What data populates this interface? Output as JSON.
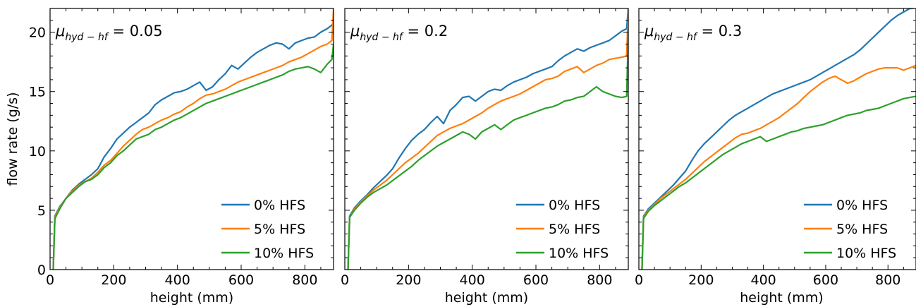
{
  "colors": {
    "0% HFS": "#1f77b4",
    "5% HFS": "#ff7f0e",
    "10% HFS": "#2ca02c"
  },
  "chart_data": [
    {
      "type": "line",
      "annotation": {
        "symbol": "μ",
        "subscript": "hyd − hf",
        "value": " = 0.05"
      },
      "xlabel": "height (mm)",
      "ylabel": "flow rate (g/s)",
      "xlim": [
        0,
        890
      ],
      "ylim": [
        0,
        22
      ],
      "xticks": [
        0,
        200,
        400,
        600,
        800
      ],
      "yticks": [
        0,
        5,
        10,
        15,
        20
      ],
      "legend_position": "lower right",
      "series": [
        {
          "name": "0% HFS",
          "x": [
            10,
            15,
            30,
            50,
            70,
            90,
            110,
            130,
            150,
            170,
            190,
            210,
            230,
            250,
            270,
            290,
            310,
            330,
            350,
            370,
            390,
            410,
            430,
            450,
            470,
            490,
            510,
            530,
            550,
            570,
            590,
            610,
            630,
            650,
            670,
            690,
            710,
            730,
            750,
            770,
            790,
            810,
            830,
            850,
            870,
            885,
            890
          ],
          "y": [
            0,
            4.5,
            5.3,
            6.0,
            6.7,
            7.2,
            7.6,
            8.0,
            8.5,
            9.5,
            10.2,
            11.0,
            11.5,
            12.0,
            12.4,
            12.8,
            13.2,
            13.9,
            14.3,
            14.6,
            14.9,
            15.0,
            15.2,
            15.5,
            15.8,
            15.1,
            15.4,
            16.0,
            16.5,
            17.2,
            16.9,
            17.4,
            17.9,
            18.3,
            18.6,
            18.9,
            19.1,
            19.0,
            18.6,
            19.1,
            19.3,
            19.5,
            19.6,
            20.0,
            20.3,
            20.6,
            20.8
          ]
        },
        {
          "name": "5% HFS",
          "x": [
            10,
            15,
            30,
            50,
            70,
            90,
            110,
            130,
            150,
            170,
            190,
            210,
            230,
            250,
            270,
            290,
            310,
            330,
            350,
            370,
            390,
            410,
            430,
            450,
            470,
            490,
            510,
            530,
            550,
            570,
            590,
            610,
            630,
            650,
            670,
            690,
            710,
            730,
            750,
            770,
            790,
            810,
            830,
            850,
            870,
            885,
            890
          ],
          "y": [
            0,
            4.4,
            5.2,
            6.0,
            6.6,
            7.1,
            7.4,
            7.7,
            8.2,
            8.8,
            9.2,
            9.8,
            10.4,
            10.9,
            11.4,
            11.8,
            12.0,
            12.3,
            12.6,
            12.8,
            13.1,
            13.3,
            13.7,
            14.0,
            14.4,
            14.7,
            14.8,
            15.0,
            15.2,
            15.5,
            15.8,
            16.0,
            16.2,
            16.4,
            16.6,
            16.8,
            17.0,
            17.2,
            17.5,
            17.7,
            17.9,
            18.2,
            18.5,
            18.8,
            19.0,
            19.3,
            22.0
          ]
        },
        {
          "name": "10% HFS",
          "x": [
            10,
            15,
            30,
            50,
            70,
            90,
            110,
            130,
            150,
            170,
            190,
            210,
            230,
            250,
            270,
            290,
            310,
            330,
            350,
            370,
            390,
            410,
            430,
            450,
            470,
            490,
            510,
            530,
            550,
            570,
            590,
            610,
            630,
            650,
            670,
            690,
            710,
            730,
            750,
            770,
            790,
            810,
            830,
            850,
            870,
            885,
            890
          ],
          "y": [
            0,
            4.3,
            5.1,
            6.0,
            6.5,
            7.0,
            7.4,
            7.6,
            8.0,
            8.6,
            9.0,
            9.6,
            10.0,
            10.5,
            11.0,
            11.2,
            11.4,
            11.8,
            12.0,
            12.3,
            12.6,
            12.8,
            13.1,
            13.4,
            13.7,
            14.0,
            14.2,
            14.4,
            14.6,
            14.8,
            15.0,
            15.2,
            15.4,
            15.6,
            15.8,
            16.0,
            16.2,
            16.4,
            16.7,
            16.9,
            17.0,
            17.1,
            16.9,
            16.6,
            17.3,
            17.7,
            19.0
          ]
        }
      ]
    },
    {
      "type": "line",
      "annotation": {
        "symbol": "μ",
        "subscript": "hyd − hf",
        "value": " = 0.2"
      },
      "xlabel": "height (mm)",
      "ylabel": "",
      "xlim": [
        0,
        890
      ],
      "ylim": [
        0,
        22
      ],
      "xticks": [
        0,
        200,
        400,
        600,
        800
      ],
      "yticks": [
        0,
        5,
        10,
        15,
        20
      ],
      "legend_position": "lower right",
      "series": [
        {
          "name": "0% HFS",
          "x": [
            10,
            15,
            30,
            50,
            70,
            90,
            110,
            130,
            150,
            170,
            190,
            210,
            230,
            250,
            270,
            290,
            310,
            330,
            350,
            370,
            390,
            410,
            430,
            450,
            470,
            490,
            510,
            530,
            550,
            570,
            590,
            610,
            630,
            650,
            670,
            690,
            710,
            730,
            750,
            770,
            790,
            810,
            830,
            850,
            870,
            885,
            890
          ],
          "y": [
            0,
            4.5,
            5.2,
            5.8,
            6.3,
            6.9,
            7.4,
            7.9,
            8.5,
            9.4,
            10.2,
            10.9,
            11.4,
            11.8,
            12.4,
            12.9,
            12.3,
            13.4,
            13.9,
            14.5,
            14.6,
            14.2,
            14.6,
            15.0,
            15.2,
            15.1,
            15.5,
            15.8,
            16.0,
            16.2,
            16.5,
            16.7,
            16.9,
            17.1,
            17.6,
            18.0,
            18.3,
            18.6,
            18.4,
            18.7,
            18.9,
            19.1,
            19.3,
            19.7,
            20.1,
            20.3,
            22.0
          ]
        },
        {
          "name": "5% HFS",
          "x": [
            10,
            15,
            30,
            50,
            70,
            90,
            110,
            130,
            150,
            170,
            190,
            210,
            230,
            250,
            270,
            290,
            310,
            330,
            350,
            370,
            390,
            410,
            430,
            450,
            470,
            490,
            510,
            530,
            550,
            570,
            590,
            610,
            630,
            650,
            670,
            690,
            710,
            730,
            750,
            770,
            790,
            810,
            830,
            850,
            870,
            885,
            890
          ],
          "y": [
            0,
            4.4,
            5.1,
            5.7,
            6.2,
            6.7,
            7.1,
            7.5,
            8.0,
            8.5,
            9.0,
            9.4,
            9.8,
            10.3,
            10.8,
            11.3,
            11.6,
            11.9,
            12.1,
            12.3,
            12.6,
            12.9,
            13.2,
            13.6,
            13.9,
            14.2,
            14.4,
            14.6,
            14.8,
            15.1,
            15.4,
            15.7,
            16.0,
            16.1,
            16.3,
            16.7,
            16.9,
            17.1,
            16.6,
            16.9,
            17.2,
            17.4,
            17.7,
            17.8,
            17.9,
            18.0,
            22.0
          ]
        },
        {
          "name": "10% HFS",
          "x": [
            10,
            15,
            30,
            50,
            70,
            90,
            110,
            130,
            150,
            170,
            190,
            210,
            230,
            250,
            270,
            290,
            310,
            330,
            350,
            370,
            390,
            410,
            430,
            450,
            470,
            490,
            510,
            530,
            550,
            570,
            590,
            610,
            630,
            650,
            670,
            690,
            710,
            730,
            750,
            770,
            790,
            810,
            830,
            850,
            870,
            885,
            890
          ],
          "y": [
            0,
            4.4,
            5.0,
            5.6,
            6.1,
            6.5,
            6.8,
            7.1,
            7.5,
            7.9,
            8.3,
            8.7,
            9.2,
            9.6,
            10.0,
            10.4,
            10.7,
            11.0,
            11.3,
            11.6,
            11.4,
            11.0,
            11.6,
            11.9,
            12.2,
            11.8,
            12.2,
            12.6,
            12.8,
            13.0,
            13.2,
            13.4,
            13.6,
            13.7,
            13.9,
            14.2,
            14.3,
            14.5,
            14.6,
            15.0,
            15.4,
            15.0,
            14.8,
            14.6,
            14.5,
            14.6,
            20.0
          ]
        }
      ]
    },
    {
      "type": "line",
      "annotation": {
        "symbol": "μ",
        "subscript": "hyd − hf",
        "value": " = 0.3"
      },
      "xlabel": "height (mm)",
      "ylabel": "",
      "xlim": [
        0,
        890
      ],
      "ylim": [
        0,
        22
      ],
      "xticks": [
        0,
        200,
        400,
        600,
        800
      ],
      "yticks": [
        0,
        5,
        10,
        15,
        20
      ],
      "legend_position": "lower right",
      "series": [
        {
          "name": "0% HFS",
          "x": [
            10,
            15,
            30,
            50,
            70,
            90,
            110,
            130,
            150,
            170,
            190,
            210,
            230,
            250,
            270,
            290,
            310,
            330,
            350,
            370,
            390,
            410,
            430,
            450,
            470,
            490,
            510,
            530,
            550,
            570,
            590,
            610,
            630,
            650,
            670,
            690,
            710,
            730,
            750,
            770,
            790,
            810,
            830,
            850,
            870,
            880
          ],
          "y": [
            0,
            4.5,
            5.1,
            5.6,
            6.1,
            6.6,
            7.1,
            7.7,
            8.3,
            9.2,
            10.0,
            10.6,
            11.1,
            11.6,
            12.1,
            12.6,
            13.0,
            13.3,
            13.6,
            13.9,
            14.2,
            14.5,
            14.8,
            15.0,
            15.2,
            15.4,
            15.6,
            15.8,
            16.0,
            16.3,
            16.6,
            16.9,
            17.2,
            17.5,
            17.8,
            18.1,
            18.5,
            19.0,
            19.5,
            20.0,
            20.5,
            21.0,
            21.4,
            21.7,
            22.0,
            22.0
          ]
        },
        {
          "name": "5% HFS",
          "x": [
            10,
            15,
            30,
            50,
            70,
            90,
            110,
            130,
            150,
            170,
            190,
            210,
            230,
            250,
            270,
            290,
            310,
            330,
            350,
            370,
            390,
            410,
            430,
            450,
            470,
            490,
            510,
            530,
            550,
            570,
            590,
            610,
            630,
            650,
            670,
            690,
            710,
            730,
            750,
            770,
            790,
            810,
            830,
            850,
            870,
            890
          ],
          "y": [
            0,
            4.4,
            5.0,
            5.5,
            6.0,
            6.4,
            6.8,
            7.2,
            7.6,
            8.1,
            8.6,
            9.1,
            9.5,
            9.9,
            10.3,
            10.7,
            11.1,
            11.4,
            11.5,
            11.7,
            11.9,
            12.2,
            12.5,
            12.8,
            13.2,
            13.6,
            14.0,
            14.5,
            15.0,
            15.4,
            15.8,
            16.1,
            16.3,
            16.0,
            15.7,
            15.9,
            16.2,
            16.5,
            16.7,
            16.9,
            17.0,
            17.0,
            17.0,
            16.8,
            17.0,
            17.2
          ]
        },
        {
          "name": "10% HFS",
          "x": [
            10,
            15,
            30,
            50,
            70,
            90,
            110,
            130,
            150,
            170,
            190,
            210,
            230,
            250,
            270,
            290,
            310,
            330,
            350,
            370,
            390,
            410,
            430,
            450,
            470,
            490,
            510,
            530,
            550,
            570,
            590,
            610,
            630,
            650,
            670,
            690,
            710,
            730,
            750,
            770,
            790,
            810,
            830,
            850,
            870,
            890
          ],
          "y": [
            0,
            4.3,
            4.9,
            5.4,
            5.8,
            6.2,
            6.6,
            7.0,
            7.3,
            7.7,
            8.1,
            8.5,
            8.9,
            9.3,
            9.7,
            10.0,
            10.3,
            10.6,
            10.8,
            11.0,
            11.2,
            10.8,
            11.0,
            11.2,
            11.4,
            11.6,
            11.7,
            11.9,
            12.0,
            12.1,
            12.2,
            12.4,
            12.6,
            12.8,
            13.0,
            13.1,
            13.2,
            13.4,
            13.5,
            13.6,
            13.8,
            14.0,
            14.2,
            14.4,
            14.5,
            14.6
          ]
        }
      ]
    }
  ]
}
